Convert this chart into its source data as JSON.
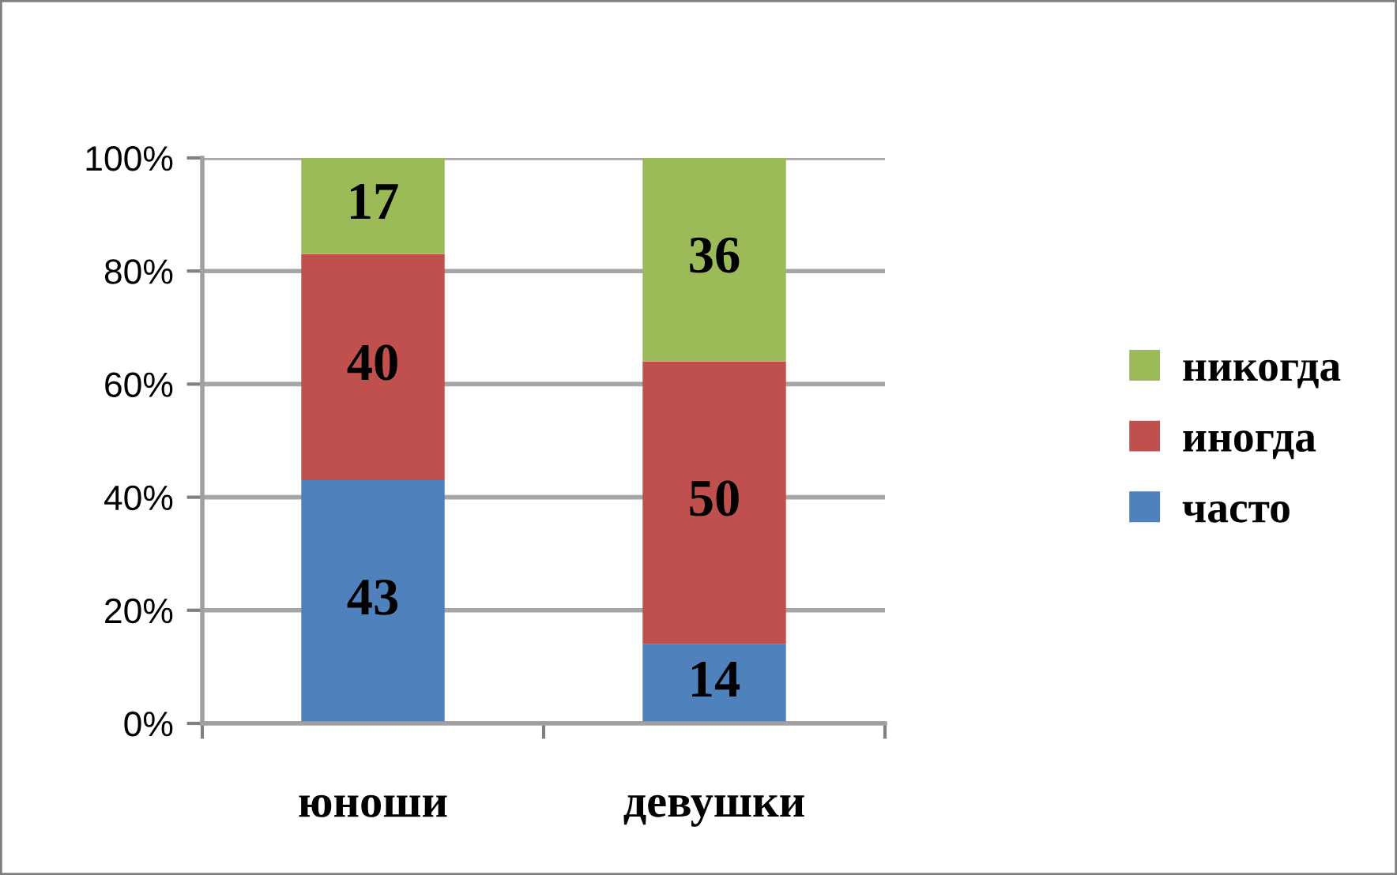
{
  "chart_data": {
    "type": "bar",
    "stacked": true,
    "categories": [
      "юноши",
      "девушки"
    ],
    "series": [
      {
        "name": "часто",
        "color": "#4f81bd",
        "values": [
          43,
          14
        ]
      },
      {
        "name": "иногда",
        "color": "#c0504d",
        "values": [
          40,
          50
        ]
      },
      {
        "name": "никогда",
        "color": "#9bbb59",
        "values": [
          17,
          36
        ]
      }
    ],
    "ylim": [
      0,
      100
    ],
    "yticks": [
      {
        "value": 0,
        "label": "0%"
      },
      {
        "value": 20,
        "label": "20%"
      },
      {
        "value": 40,
        "label": "40%"
      },
      {
        "value": 60,
        "label": "60%"
      },
      {
        "value": 80,
        "label": "80%"
      },
      {
        "value": 100,
        "label": "100%"
      }
    ],
    "grid": "y",
    "legend": "right",
    "data_labels": true
  }
}
